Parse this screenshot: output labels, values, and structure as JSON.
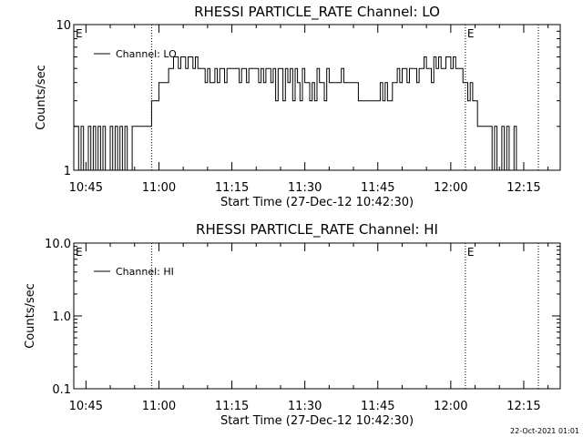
{
  "timestamp": "22-Oct-2021 01:01",
  "chart_data": [
    {
      "type": "line",
      "title": "RHESSI PARTICLE_RATE Channel: LO",
      "xlabel": "Start Time (27-Dec-12 10:42:30)",
      "ylabel": "Counts/sec",
      "xlim": [
        "10:42:30",
        "12:22:30"
      ],
      "ylim": [
        1,
        10
      ],
      "yscale": "log",
      "xticks": [
        "10:45",
        "11:00",
        "11:15",
        "11:30",
        "11:45",
        "12:00",
        "12:15"
      ],
      "yticks": [
        "1",
        "10"
      ],
      "legend_position": "top-left",
      "vlines": [
        "10:58:30",
        "12:03:00",
        "12:18:00"
      ],
      "markers": [
        {
          "label": "E",
          "x": "10:42:30"
        },
        {
          "label": "E",
          "x": "12:03:00"
        }
      ],
      "series": [
        {
          "name": "Channel: LO",
          "x": [
            "10:42:30",
            "10:43:00",
            "10:43:30",
            "10:44:00",
            "10:44:30",
            "10:45:00",
            "10:45:30",
            "10:46:00",
            "10:46:30",
            "10:47:00",
            "10:47:30",
            "10:48:00",
            "10:48:30",
            "10:49:00",
            "10:49:30",
            "10:50:00",
            "10:50:30",
            "10:51:00",
            "10:51:30",
            "10:52:00",
            "10:52:30",
            "10:53:00",
            "10:53:30",
            "10:54:00",
            "10:54:30",
            "10:55:00",
            "10:56:00",
            "10:57:00",
            "10:58:00",
            "10:58:30",
            "10:59:00",
            "10:59:30",
            "11:00:00",
            "11:01:00",
            "11:02:00",
            "11:02:30",
            "11:03:00",
            "11:03:30",
            "11:04:00",
            "11:04:30",
            "11:05:00",
            "11:05:30",
            "11:06:00",
            "11:06:30",
            "11:07:00",
            "11:07:30",
            "11:08:00",
            "11:08:30",
            "11:09:00",
            "11:09:30",
            "11:10:00",
            "11:10:30",
            "11:11:00",
            "11:11:30",
            "11:12:00",
            "11:12:30",
            "11:13:00",
            "11:13:30",
            "11:14:00",
            "11:14:30",
            "11:15:00",
            "11:15:30",
            "11:16:00",
            "11:16:30",
            "11:17:00",
            "11:17:30",
            "11:18:00",
            "11:18:30",
            "11:19:00",
            "11:19:30",
            "11:20:00",
            "11:20:30",
            "11:21:00",
            "11:21:30",
            "11:22:00",
            "11:22:30",
            "11:23:00",
            "11:23:30",
            "11:24:00",
            "11:24:30",
            "11:25:00",
            "11:25:30",
            "11:26:00",
            "11:26:30",
            "11:27:00",
            "11:27:30",
            "11:28:00",
            "11:28:30",
            "11:29:00",
            "11:29:30",
            "11:30:00",
            "11:30:30",
            "11:31:00",
            "11:31:30",
            "11:32:00",
            "11:32:30",
            "11:33:00",
            "11:33:30",
            "11:34:00",
            "11:34:30",
            "11:35:00",
            "11:35:30",
            "11:36:00",
            "11:36:30",
            "11:37:00",
            "11:37:30",
            "11:38:00",
            "11:38:30",
            "11:39:00",
            "11:39:30",
            "11:40:00",
            "11:40:30",
            "11:41:00",
            "11:41:30",
            "11:42:00",
            "11:42:30",
            "11:43:00",
            "11:43:30",
            "11:44:00",
            "11:44:30",
            "11:45:00",
            "11:45:30",
            "11:46:00",
            "11:46:30",
            "11:47:00",
            "11:47:30",
            "11:48:00",
            "11:48:30",
            "11:49:00",
            "11:49:30",
            "11:50:00",
            "11:50:30",
            "11:51:00",
            "11:51:30",
            "11:52:00",
            "11:52:30",
            "11:53:00",
            "11:53:30",
            "11:54:00",
            "11:54:30",
            "11:55:00",
            "11:55:30",
            "11:56:00",
            "11:56:30",
            "11:57:00",
            "11:57:30",
            "11:58:00",
            "11:58:30",
            "11:59:00",
            "11:59:30",
            "12:00:00",
            "12:00:30",
            "12:01:00",
            "12:01:30",
            "12:02:00",
            "12:02:30",
            "12:03:00",
            "12:03:30",
            "12:04:00",
            "12:04:30",
            "12:05:00",
            "12:05:30",
            "12:06:00",
            "12:06:30",
            "12:07:00",
            "12:07:30",
            "12:08:00",
            "12:08:30",
            "12:09:00",
            "12:09:30",
            "12:10:00",
            "12:10:30",
            "12:11:00",
            "12:11:30",
            "12:12:00",
            "12:12:30",
            "12:13:00",
            "12:13:30",
            "12:14:00",
            "12:14:30",
            "12:15:00"
          ],
          "values": [
            2,
            2,
            1,
            2,
            1,
            1,
            2,
            1,
            2,
            1,
            2,
            1,
            2,
            1,
            1,
            2,
            1,
            2,
            1,
            2,
            1,
            2,
            1,
            1,
            2,
            2,
            2,
            2,
            2,
            3,
            3,
            3,
            4,
            4,
            5,
            5,
            6,
            6,
            5,
            6,
            6,
            5,
            6,
            6,
            5,
            6,
            5,
            5,
            5,
            4,
            5,
            4,
            4,
            5,
            4,
            5,
            5,
            4,
            5,
            5,
            5,
            5,
            5,
            4,
            5,
            5,
            4,
            5,
            5,
            5,
            5,
            4,
            5,
            4,
            5,
            5,
            4,
            5,
            3,
            5,
            5,
            3,
            5,
            4,
            5,
            3,
            5,
            4,
            3,
            5,
            4,
            4,
            3,
            4,
            3,
            5,
            4,
            4,
            3,
            5,
            4,
            4,
            4,
            4,
            4,
            5,
            4,
            4,
            4,
            4,
            4,
            4,
            3,
            3,
            3,
            3,
            3,
            3,
            3,
            3,
            3,
            4,
            3,
            4,
            3,
            3,
            4,
            4,
            5,
            4,
            5,
            5,
            4,
            5,
            5,
            5,
            4,
            5,
            5,
            6,
            5,
            5,
            4,
            6,
            5,
            6,
            5,
            5,
            6,
            6,
            5,
            6,
            5,
            5,
            5,
            4,
            4,
            3,
            4,
            3,
            3,
            2,
            2,
            2,
            2,
            2,
            2,
            1,
            2,
            1,
            1,
            2,
            1,
            2,
            1,
            1,
            2,
            1,
            1,
            1,
            1
          ],
          "color": "#000000"
        }
      ]
    },
    {
      "type": "line",
      "title": "RHESSI PARTICLE_RATE Channel: HI",
      "xlabel": "Start Time (27-Dec-12 10:42:30)",
      "ylabel": "Counts/sec",
      "xlim": [
        "10:42:30",
        "12:22:30"
      ],
      "ylim": [
        0.1,
        10.0
      ],
      "yscale": "log",
      "xticks": [
        "10:45",
        "11:00",
        "11:15",
        "11:30",
        "11:45",
        "12:00",
        "12:15"
      ],
      "yticks": [
        "0.1",
        "1.0",
        "10.0"
      ],
      "legend_position": "top-left",
      "vlines": [
        "10:58:30",
        "12:03:00",
        "12:18:00"
      ],
      "markers": [
        {
          "label": "E",
          "x": "10:42:30"
        },
        {
          "label": "E",
          "x": "12:03:00"
        }
      ],
      "series": [
        {
          "name": "Channel: HI",
          "x": [],
          "values": [],
          "color": "#000000"
        }
      ]
    }
  ]
}
